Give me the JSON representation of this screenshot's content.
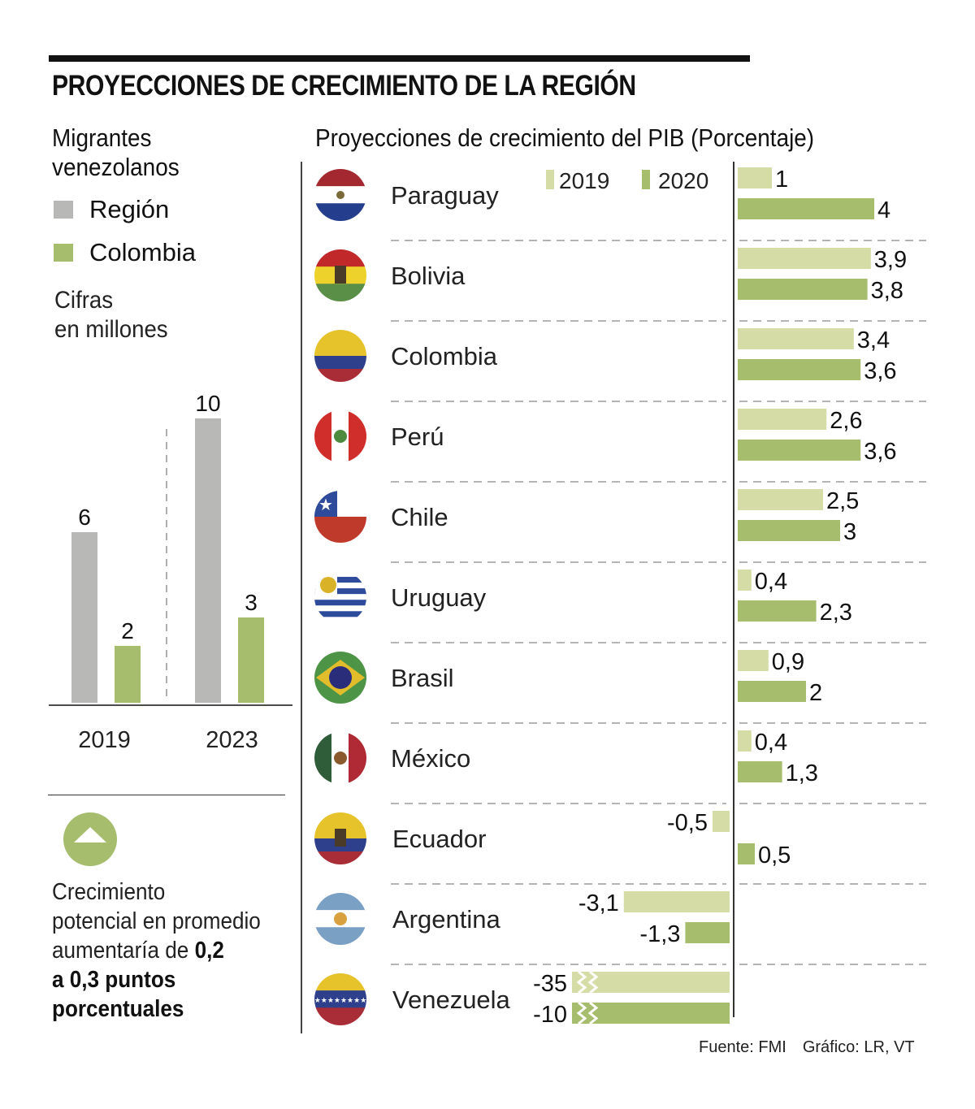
{
  "title": "PROYECCIONES DE CRECIMIENTO DE LA REGIÓN",
  "left_panel": {
    "title_lines": [
      "Migrantes",
      "venezolanos"
    ],
    "legend": [
      {
        "label": "Región",
        "color": "#b8b8b6"
      },
      {
        "label": "Colombia",
        "color": "#a5bd6d"
      }
    ],
    "units_lines": [
      "Cifras",
      "en millones"
    ],
    "note": {
      "line1": "Crecimiento",
      "line2": "potencial en promedio",
      "line3_normal": "aumentaría de ",
      "line3_bold": "0,2",
      "line4_bold": "a 0,3 puntos",
      "line5_bold": "porcentuales"
    },
    "badge_icon": "up-triangle-icon"
  },
  "right_panel": {
    "title": "Proyecciones de crecimiento del PIB (Porcentaje)",
    "legend": [
      {
        "label": "2019",
        "color": "#d6dca5"
      },
      {
        "label": "2020",
        "color": "#a5bd6d"
      }
    ]
  },
  "footer": {
    "source": "Fuente: FMI",
    "credit": "Gráfico: LR, VT"
  },
  "chart_data": [
    {
      "type": "bar",
      "title": "Migrantes venezolanos",
      "subtitle": "Cifras en millones",
      "categories": [
        "2019",
        "2023"
      ],
      "series": [
        {
          "name": "Región",
          "color": "#b8b8b6",
          "values": [
            6,
            10
          ],
          "labels": [
            "6",
            "10"
          ]
        },
        {
          "name": "Colombia",
          "color": "#a5bd6d",
          "values": [
            2,
            3
          ],
          "labels": [
            "2",
            "3"
          ]
        }
      ],
      "ylim": [
        0,
        10
      ],
      "xlabel": "",
      "ylabel": "",
      "grid": false,
      "legend": "top-left"
    },
    {
      "type": "bar",
      "orientation": "horizontal",
      "title": "Proyecciones de crecimiento del PIB (Porcentaje)",
      "categories": [
        "Paraguay",
        "Bolivia",
        "Colombia",
        "Perú",
        "Chile",
        "Uruguay",
        "Brasil",
        "México",
        "Ecuador",
        "Argentina",
        "Venezuela"
      ],
      "flags": [
        "paraguay-flag-icon",
        "bolivia-flag-icon",
        "colombia-flag-icon",
        "peru-flag-icon",
        "chile-flag-icon",
        "uruguay-flag-icon",
        "brazil-flag-icon",
        "mexico-flag-icon",
        "ecuador-flag-icon",
        "argentina-flag-icon",
        "venezuela-flag-icon"
      ],
      "series": [
        {
          "name": "2019",
          "color": "#d6dca5",
          "values": [
            1,
            3.9,
            3.4,
            2.6,
            2.5,
            0.4,
            0.9,
            0.4,
            -0.5,
            -3.1,
            -35
          ],
          "labels": [
            "1",
            "3,9",
            "3,4",
            "2,6",
            "2,5",
            "0,4",
            "0,9",
            "0,4",
            "-0,5",
            "-3,1",
            "-35"
          ]
        },
        {
          "name": "2020",
          "color": "#a5bd6d",
          "values": [
            4,
            3.8,
            3.6,
            3.6,
            3,
            2.3,
            2,
            1.3,
            0.5,
            -1.3,
            -10
          ],
          "labels": [
            "4",
            "3,8",
            "3,6",
            "3,6",
            "3",
            "2,3",
            "2",
            "1,3",
            "0,5",
            "-1,3",
            "-10"
          ]
        }
      ],
      "truncated_categories": [
        "Venezuela"
      ],
      "xlim": [
        -4.6,
        4.5
      ],
      "xlabel": "",
      "ylabel": "",
      "grid": false,
      "legend": "top-center"
    }
  ]
}
